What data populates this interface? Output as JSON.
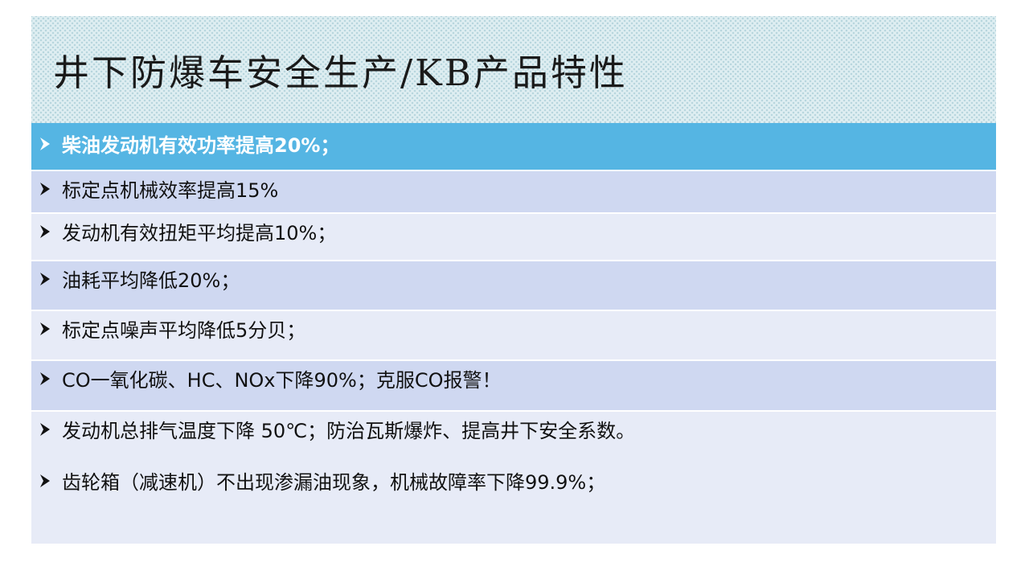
{
  "title": "井下防爆车安全生产/KB产品特性",
  "bullet_icon": "arrow-bullet-icon",
  "colors": {
    "highlight": "#55b5e3",
    "row_dark": "#cfd8f1",
    "row_light": "#e7ebf7"
  },
  "items": [
    "柴油发动机有效功率提高20%；",
    "标定点机械效率提高15%",
    "发动机有效扭矩平均提高10%；",
    "油耗平均降低20%；",
    "标定点噪声平均降低5分贝；",
    "CO一氧化碳、HC、NOx下降90%；克服CO报警！",
    "发动机总排气温度下降 50℃；防治瓦斯爆炸、提高井下安全系数。",
    "齿轮箱（减速机）不出现渗漏油现象，机械故障率下降99.9%；"
  ]
}
